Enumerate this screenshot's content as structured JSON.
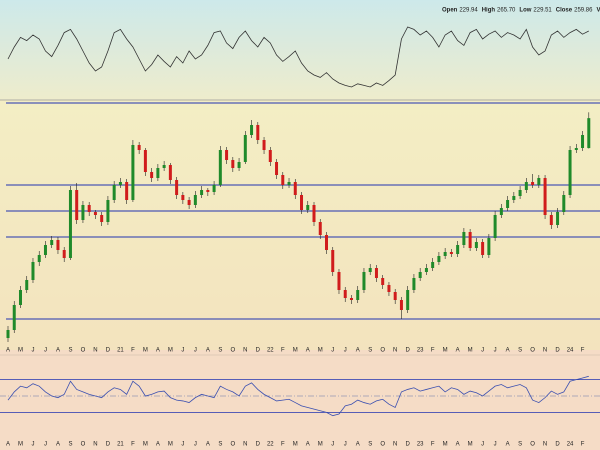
{
  "chart_data": {
    "type": "candlestick",
    "header": [
      {
        "name": "Open",
        "value": 229.94
      },
      {
        "name": "High",
        "value": 265.7,
        "label": "265.70"
      },
      {
        "name": "Low",
        "value": 229.51
      },
      {
        "name": "Close",
        "value": 259.86
      },
      {
        "name": "Volume"
      }
    ],
    "months": [
      "A",
      "M",
      "J",
      "J",
      "A",
      "S",
      "O",
      "N",
      "D",
      "21",
      "F",
      "M",
      "A",
      "M",
      "J",
      "J",
      "A",
      "S",
      "O",
      "N",
      "D",
      "22",
      "F",
      "M",
      "A",
      "M",
      "J",
      "J",
      "A",
      "S",
      "O",
      "N",
      "D",
      "23",
      "F",
      "M",
      "A",
      "M",
      "J",
      "J",
      "A",
      "S",
      "O",
      "N",
      "D",
      "24",
      "F"
    ],
    "candles": [
      [
        40,
        52,
        36,
        48
      ],
      [
        48,
        77,
        45,
        73
      ],
      [
        73,
        92,
        70,
        88
      ],
      [
        88,
        102,
        85,
        98
      ],
      [
        98,
        120,
        95,
        116
      ],
      [
        116,
        127,
        112,
        123
      ],
      [
        123,
        137,
        120,
        133
      ],
      [
        133,
        142,
        130,
        138
      ],
      [
        138,
        141,
        124,
        128
      ],
      [
        128,
        131,
        116,
        120
      ],
      [
        120,
        192,
        118,
        188
      ],
      [
        188,
        195,
        154,
        158
      ],
      [
        158,
        177,
        155,
        173
      ],
      [
        173,
        176,
        162,
        166
      ],
      [
        166,
        168,
        159,
        163
      ],
      [
        163,
        166,
        152,
        156
      ],
      [
        156,
        182,
        153,
        178
      ],
      [
        178,
        197,
        175,
        193
      ],
      [
        193,
        200,
        190,
        196
      ],
      [
        196,
        199,
        174,
        178
      ],
      [
        178,
        238,
        176,
        233
      ],
      [
        233,
        236,
        224,
        228
      ],
      [
        228,
        230,
        202,
        206
      ],
      [
        206,
        210,
        196,
        200
      ],
      [
        200,
        214,
        197,
        210
      ],
      [
        210,
        217,
        207,
        213
      ],
      [
        213,
        215,
        194,
        198
      ],
      [
        198,
        201,
        179,
        183
      ],
      [
        183,
        186,
        174,
        178
      ],
      [
        178,
        181,
        169,
        173
      ],
      [
        173,
        187,
        170,
        183
      ],
      [
        183,
        192,
        180,
        188
      ],
      [
        188,
        190,
        182,
        186
      ],
      [
        186,
        197,
        183,
        193
      ],
      [
        193,
        232,
        191,
        228
      ],
      [
        228,
        231,
        214,
        218
      ],
      [
        218,
        221,
        206,
        210
      ],
      [
        210,
        220,
        207,
        216
      ],
      [
        216,
        247,
        214,
        243
      ],
      [
        243,
        258,
        240,
        253
      ],
      [
        253,
        256,
        234,
        238
      ],
      [
        238,
        241,
        224,
        228
      ],
      [
        228,
        231,
        212,
        216
      ],
      [
        216,
        219,
        199,
        203
      ],
      [
        203,
        206,
        189,
        193
      ],
      [
        193,
        200,
        190,
        196
      ],
      [
        196,
        199,
        179,
        183
      ],
      [
        183,
        186,
        164,
        168
      ],
      [
        168,
        177,
        165,
        173
      ],
      [
        173,
        176,
        152,
        156
      ],
      [
        156,
        159,
        139,
        143
      ],
      [
        143,
        146,
        124,
        128
      ],
      [
        128,
        131,
        102,
        106
      ],
      [
        106,
        109,
        84,
        88
      ],
      [
        88,
        91,
        76,
        80
      ],
      [
        80,
        83,
        74,
        78
      ],
      [
        78,
        92,
        75,
        88
      ],
      [
        88,
        110,
        85,
        106
      ],
      [
        106,
        114,
        103,
        110
      ],
      [
        110,
        113,
        96,
        100
      ],
      [
        100,
        103,
        89,
        93
      ],
      [
        93,
        96,
        82,
        86
      ],
      [
        86,
        89,
        74,
        78
      ],
      [
        78,
        81,
        59,
        68
      ],
      [
        68,
        92,
        65,
        88
      ],
      [
        88,
        104,
        85,
        100
      ],
      [
        100,
        110,
        97,
        106
      ],
      [
        106,
        114,
        103,
        110
      ],
      [
        110,
        120,
        107,
        116
      ],
      [
        116,
        126,
        113,
        122
      ],
      [
        122,
        130,
        119,
        126
      ],
      [
        126,
        129,
        121,
        124
      ],
      [
        124,
        137,
        121,
        133
      ],
      [
        133,
        150,
        130,
        146
      ],
      [
        146,
        149,
        127,
        130
      ],
      [
        130,
        140,
        127,
        136
      ],
      [
        136,
        139,
        120,
        123
      ],
      [
        123,
        144,
        120,
        140
      ],
      [
        140,
        167,
        137,
        163
      ],
      [
        163,
        174,
        160,
        170
      ],
      [
        170,
        182,
        167,
        178
      ],
      [
        178,
        186,
        175,
        182
      ],
      [
        182,
        192,
        179,
        188
      ],
      [
        188,
        200,
        185,
        196
      ],
      [
        196,
        204,
        190,
        193
      ],
      [
        193,
        203,
        190,
        200
      ],
      [
        200,
        203,
        159,
        163
      ],
      [
        163,
        166,
        149,
        153
      ],
      [
        153,
        170,
        150,
        166
      ],
      [
        166,
        187,
        163,
        183
      ],
      [
        183,
        232,
        180,
        228
      ],
      [
        228,
        234,
        225,
        230
      ],
      [
        230,
        247,
        227,
        243
      ],
      [
        229.94,
        265.7,
        229.51,
        259.86
      ]
    ],
    "up_color": "#1f8a2a",
    "down_color": "#d01c1c",
    "ylim": [
      33,
      278
    ],
    "levels": [
      275,
      193,
      167,
      141,
      59
    ],
    "level_color": "#2233b0",
    "oscillator": {
      "ylim": [
        0,
        100
      ],
      "color": "#333333",
      "values": [
        45,
        60,
        72,
        68,
        75,
        70,
        55,
        48,
        62,
        78,
        82,
        70,
        55,
        40,
        30,
        35,
        55,
        78,
        82,
        70,
        60,
        45,
        30,
        38,
        50,
        42,
        35,
        48,
        40,
        55,
        45,
        50,
        62,
        78,
        80,
        65,
        58,
        72,
        80,
        68,
        60,
        72,
        65,
        50,
        42,
        48,
        55,
        40,
        30,
        25,
        22,
        28,
        20,
        15,
        12,
        10,
        14,
        12,
        10,
        15,
        12,
        18,
        25,
        70,
        85,
        82,
        75,
        80,
        72,
        60,
        75,
        80,
        68,
        62,
        78,
        82,
        70,
        76,
        80,
        72,
        78,
        75,
        70,
        82,
        60,
        50,
        55,
        75,
        80,
        72,
        78,
        82,
        76,
        80
      ]
    },
    "rsi": {
      "ylim": [
        0,
        100
      ],
      "levels": [
        30,
        50,
        70
      ],
      "color": "#3a4fb0",
      "values": [
        45,
        55,
        62,
        60,
        65,
        62,
        55,
        50,
        48,
        52,
        68,
        58,
        55,
        52,
        50,
        48,
        55,
        60,
        58,
        52,
        68,
        62,
        50,
        52,
        55,
        56,
        48,
        45,
        44,
        42,
        48,
        52,
        50,
        48,
        62,
        58,
        55,
        50,
        62,
        66,
        58,
        52,
        48,
        44,
        45,
        46,
        42,
        38,
        36,
        34,
        32,
        30,
        26,
        28,
        38,
        40,
        45,
        42,
        40,
        44,
        46,
        40,
        36,
        55,
        58,
        60,
        56,
        58,
        60,
        62,
        55,
        60,
        58,
        52,
        56,
        54,
        50,
        56,
        62,
        64,
        60,
        62,
        64,
        60,
        45,
        42,
        48,
        56,
        52,
        55,
        68,
        70,
        72,
        74
      ]
    }
  }
}
